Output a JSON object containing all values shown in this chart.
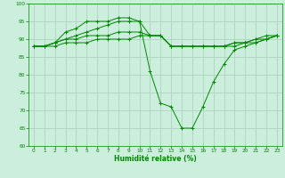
{
  "title": "",
  "xlabel": "Humidité relative (%)",
  "ylabel": "",
  "background_color": "#cceedd",
  "grid_color": "#aaccbb",
  "line_color": "#008800",
  "ylim": [
    60,
    100
  ],
  "xlim": [
    -0.5,
    23.5
  ],
  "yticks": [
    60,
    65,
    70,
    75,
    80,
    85,
    90,
    95,
    100
  ],
  "xticks": [
    0,
    1,
    2,
    3,
    4,
    5,
    6,
    7,
    8,
    9,
    10,
    11,
    12,
    13,
    14,
    15,
    16,
    17,
    18,
    19,
    20,
    21,
    22,
    23
  ],
  "series": [
    [
      88,
      88,
      89,
      92,
      93,
      95,
      95,
      95,
      96,
      96,
      95,
      81,
      72,
      71,
      65,
      65,
      71,
      78,
      83,
      87,
      88,
      89,
      90,
      91
    ],
    [
      88,
      88,
      89,
      90,
      91,
      92,
      93,
      94,
      95,
      95,
      95,
      91,
      91,
      88,
      88,
      88,
      88,
      88,
      88,
      89,
      89,
      90,
      91,
      91
    ],
    [
      88,
      88,
      89,
      90,
      90,
      91,
      91,
      91,
      92,
      92,
      92,
      91,
      91,
      88,
      88,
      88,
      88,
      88,
      88,
      89,
      89,
      90,
      90,
      91
    ],
    [
      88,
      88,
      88,
      89,
      89,
      89,
      90,
      90,
      90,
      90,
      91,
      91,
      91,
      88,
      88,
      88,
      88,
      88,
      88,
      88,
      89,
      89,
      90,
      91
    ]
  ]
}
